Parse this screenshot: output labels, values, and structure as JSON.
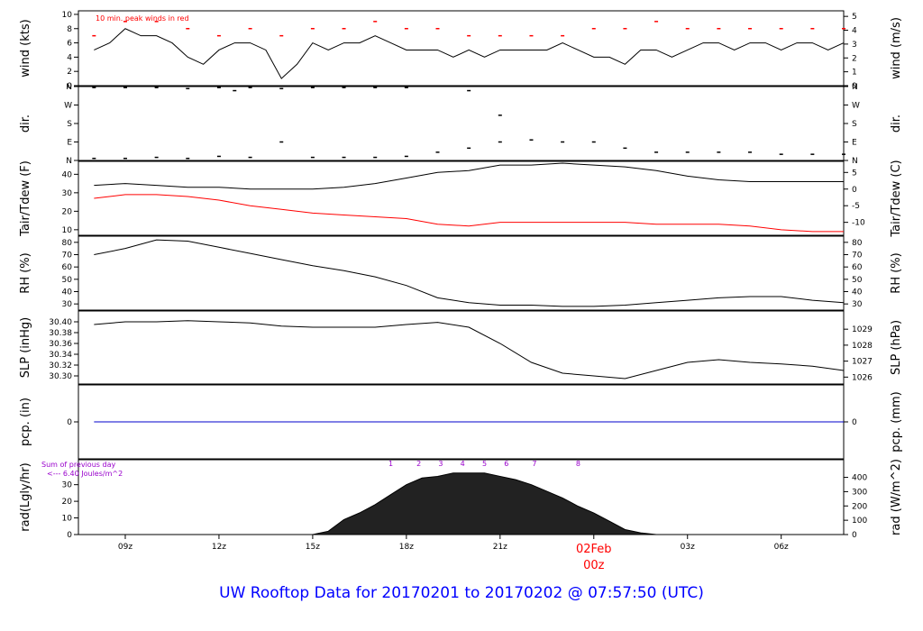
{
  "title": "UW Rooftop Data for 20170201  to  20170202 @ 07:57:50  (UTC)",
  "colors": {
    "black": "#000000",
    "red": "#ff0000",
    "blue": "#0000cc",
    "purple": "#9900cc",
    "title": "#0000ff"
  },
  "chart_data": [
    {
      "type": "line",
      "ylabel_left": "wind (kts)",
      "ylabel_right": "wind (m/s)",
      "annotation": "10 min. peak winds in red",
      "ylim": [
        0,
        10.5
      ],
      "ticks_left": [
        0,
        2,
        4,
        6,
        8,
        10
      ],
      "ticks_right": [
        0,
        1,
        2,
        3,
        4,
        5
      ],
      "series": [
        {
          "color": "#000000",
          "x": [
            8.0,
            8.5,
            9.0,
            9.5,
            10.0,
            10.5,
            11.0,
            11.5,
            12.0,
            12.5,
            13.0,
            13.5,
            14.0,
            14.5,
            15.0,
            15.5,
            16.0,
            16.5,
            17.0,
            17.5,
            18.0,
            18.5,
            19.0,
            19.5,
            20.0,
            20.5,
            21.0,
            21.5,
            22.0,
            22.5,
            23.0,
            23.5,
            24.0,
            24.5,
            25.0,
            25.5,
            26.0,
            26.5,
            27.0,
            27.5,
            28.0,
            28.5,
            29.0,
            29.5,
            30.0,
            30.5,
            31.0,
            31.5,
            32.0
          ],
          "values": [
            5,
            6,
            8,
            7,
            7,
            6,
            4,
            3,
            5,
            6,
            6,
            5,
            1,
            3,
            6,
            5,
            6,
            6,
            7,
            6,
            5,
            5,
            5,
            4,
            5,
            4,
            5,
            5,
            5,
            5,
            6,
            5,
            4,
            4,
            3,
            5,
            5,
            4,
            5,
            6,
            6,
            5,
            6,
            6,
            5,
            6,
            6,
            5,
            6
          ]
        },
        {
          "color": "#ff0000",
          "style": "dashes",
          "x": [
            8.0,
            9.0,
            10.0,
            11.0,
            12.0,
            13.0,
            14.0,
            15.0,
            16.0,
            17.0,
            18.0,
            19.0,
            20.0,
            21.0,
            22.0,
            23.0,
            24.0,
            25.0,
            26.0,
            27.0,
            28.0,
            29.0,
            30.0,
            31.0,
            32.0
          ],
          "values": [
            7,
            9,
            9,
            8,
            7,
            8,
            7,
            8,
            8,
            9,
            8,
            8,
            7,
            7,
            7,
            7,
            8,
            8,
            9,
            8,
            8,
            8,
            8,
            8,
            8
          ]
        }
      ]
    },
    {
      "type": "scatter",
      "ylabel_left": "dir.",
      "ylabel_right": "dir.",
      "ticks_left": [
        "N",
        "E",
        "S",
        "W",
        "N"
      ],
      "ticks_right": [
        "N",
        "E",
        "S",
        "W",
        "N"
      ],
      "ylim": [
        0,
        360
      ],
      "series": [
        {
          "color": "#000000",
          "x": [
            8.0,
            9.0,
            10.0,
            11.0,
            12.0,
            13.0,
            14.0,
            15.0,
            16.0,
            17.0,
            18.0,
            19.0,
            20.0,
            21.0,
            22.0,
            23.0,
            24.0,
            25.0,
            26.0,
            27.0,
            28.0,
            29.0,
            30.0,
            31.0,
            32.0
          ],
          "values": [
            10,
            10,
            15,
            10,
            20,
            15,
            90,
            15,
            15,
            15,
            20,
            40,
            60,
            90,
            100,
            90,
            90,
            60,
            40,
            40,
            40,
            40,
            30,
            30,
            30
          ]
        },
        {
          "color": "#000000",
          "x": [
            8.0,
            9.0,
            10.0,
            11.0,
            12.0,
            12.5,
            13.0,
            14.0,
            15.0,
            16.0,
            17.0,
            18.0,
            20.0,
            21.0
          ],
          "values": [
            355,
            355,
            355,
            350,
            355,
            340,
            355,
            350,
            355,
            355,
            355,
            355,
            340,
            220
          ]
        }
      ]
    },
    {
      "type": "line",
      "ylabel_left": "Tair/Tdew (F)",
      "ylabel_right": "Tair/Tdew (C)",
      "ylim": [
        7,
        47
      ],
      "ticks_left": [
        10,
        20,
        30,
        40
      ],
      "ticks_right": [
        -10,
        -5,
        0,
        5
      ],
      "series": [
        {
          "color": "#000000",
          "x": [
            8.0,
            9.0,
            10.0,
            11.0,
            12.0,
            13.0,
            14.0,
            15.0,
            16.0,
            17.0,
            18.0,
            19.0,
            20.0,
            21.0,
            22.0,
            23.0,
            24.0,
            25.0,
            26.0,
            27.0,
            28.0,
            29.0,
            30.0,
            31.0,
            32.0
          ],
          "values": [
            34,
            35,
            34,
            33,
            33,
            32,
            32,
            32,
            33,
            35,
            38,
            41,
            42,
            45,
            45,
            46,
            45,
            44,
            42,
            39,
            37,
            36,
            36,
            36,
            36
          ]
        },
        {
          "color": "#ff0000",
          "x": [
            8.0,
            9.0,
            10.0,
            11.0,
            12.0,
            13.0,
            14.0,
            15.0,
            16.0,
            17.0,
            18.0,
            19.0,
            20.0,
            21.0,
            22.0,
            23.0,
            24.0,
            25.0,
            26.0,
            27.0,
            28.0,
            29.0,
            30.0,
            31.0,
            32.0
          ],
          "values": [
            27,
            29,
            29,
            28,
            26,
            23,
            21,
            19,
            18,
            17,
            16,
            13,
            12,
            14,
            14,
            14,
            14,
            14,
            13,
            13,
            13,
            12,
            10,
            9,
            9
          ]
        }
      ]
    },
    {
      "type": "line",
      "ylabel_left": "RH (%)",
      "ylabel_right": "RH (%)",
      "ylim": [
        25,
        85
      ],
      "ticks_left": [
        30,
        40,
        50,
        60,
        70,
        80
      ],
      "ticks_right": [
        30,
        40,
        50,
        60,
        70,
        80
      ],
      "series": [
        {
          "color": "#000000",
          "x": [
            8.0,
            9.0,
            10.0,
            11.0,
            12.0,
            13.0,
            14.0,
            15.0,
            16.0,
            17.0,
            18.0,
            19.0,
            20.0,
            21.0,
            22.0,
            23.0,
            24.0,
            25.0,
            26.0,
            27.0,
            28.0,
            29.0,
            30.0,
            31.0,
            32.0
          ],
          "values": [
            70,
            75,
            82,
            81,
            76,
            71,
            66,
            61,
            57,
            52,
            45,
            35,
            31,
            29,
            29,
            28,
            28,
            29,
            31,
            33,
            35,
            36,
            36,
            33,
            31
          ]
        }
      ]
    },
    {
      "type": "line",
      "ylabel_left": "SLP (inHg)",
      "ylabel_right": "SLP (hPa)",
      "ylim": [
        30.285,
        30.42
      ],
      "ticks_left": [
        "30.30",
        "30.32",
        "30.34",
        "30.36",
        "30.38",
        "30.40"
      ],
      "ticks_right": [
        1026,
        1027,
        1028,
        1029
      ],
      "series": [
        {
          "color": "#000000",
          "x": [
            8.0,
            9.0,
            10.0,
            11.0,
            12.0,
            13.0,
            14.0,
            15.0,
            16.0,
            17.0,
            18.0,
            19.0,
            20.0,
            21.0,
            22.0,
            23.0,
            24.0,
            25.0,
            26.0,
            27.0,
            28.0,
            29.0,
            30.0,
            31.0,
            32.0
          ],
          "values": [
            30.395,
            30.4,
            30.4,
            30.402,
            30.4,
            30.398,
            30.392,
            30.39,
            30.39,
            30.39,
            30.395,
            30.399,
            30.39,
            30.36,
            30.325,
            30.305,
            30.3,
            30.295,
            30.31,
            30.325,
            30.33,
            30.325,
            30.322,
            30.318,
            30.31
          ]
        }
      ]
    },
    {
      "type": "line",
      "ylabel_left": "pcp. (in)",
      "ylabel_right": "pcp. (mm)",
      "ylim": [
        -1,
        1
      ],
      "ticks_left": [
        0
      ],
      "ticks_right": [
        0
      ],
      "series": [
        {
          "color": "#0000cc",
          "x": [
            8.0,
            32.0
          ],
          "values": [
            0,
            0
          ]
        }
      ]
    },
    {
      "type": "area",
      "ylabel_left": "rad(Lgly/hr)",
      "ylabel_right": "rad (W/m^2)",
      "annotation": [
        "Sum of previous day",
        "<--- 6.40 Joules/m^2"
      ],
      "ylim": [
        0,
        45
      ],
      "ticks_left": [
        0,
        10,
        20,
        30
      ],
      "ticks_right": [
        0,
        100,
        200,
        300,
        400
      ],
      "hour_markers": {
        "labels": [
          "1",
          "2",
          "3",
          "4",
          "5",
          "6",
          "7",
          "8"
        ],
        "x": [
          17.5,
          18.4,
          19.1,
          19.8,
          20.5,
          21.2,
          22.1,
          23.5
        ]
      },
      "series": [
        {
          "color": "#000000",
          "x": [
            15.0,
            15.5,
            16.0,
            16.5,
            17.0,
            17.5,
            18.0,
            18.5,
            19.0,
            19.5,
            20.0,
            20.5,
            21.0,
            21.5,
            22.0,
            22.5,
            23.0,
            23.5,
            24.0,
            24.5,
            25.0,
            25.5,
            26.0
          ],
          "values": [
            0,
            2,
            9,
            13,
            18,
            24,
            30,
            34,
            35,
            37,
            37,
            37,
            35,
            33,
            30,
            26,
            22,
            17,
            13,
            8,
            3,
            1,
            0
          ]
        }
      ]
    }
  ],
  "xaxis": {
    "xlim": [
      7.5,
      32.0
    ],
    "ticks": [
      {
        "x": 9.0,
        "label": "09z"
      },
      {
        "x": 12.0,
        "label": "12z"
      },
      {
        "x": 15.0,
        "label": "15z"
      },
      {
        "x": 18.0,
        "label": "18z"
      },
      {
        "x": 21.0,
        "label": "21z"
      },
      {
        "x": 24.0,
        "label": "02Feb",
        "label2": "00z",
        "highlight": true
      },
      {
        "x": 27.0,
        "label": "03z"
      },
      {
        "x": 30.0,
        "label": "06z"
      }
    ]
  }
}
